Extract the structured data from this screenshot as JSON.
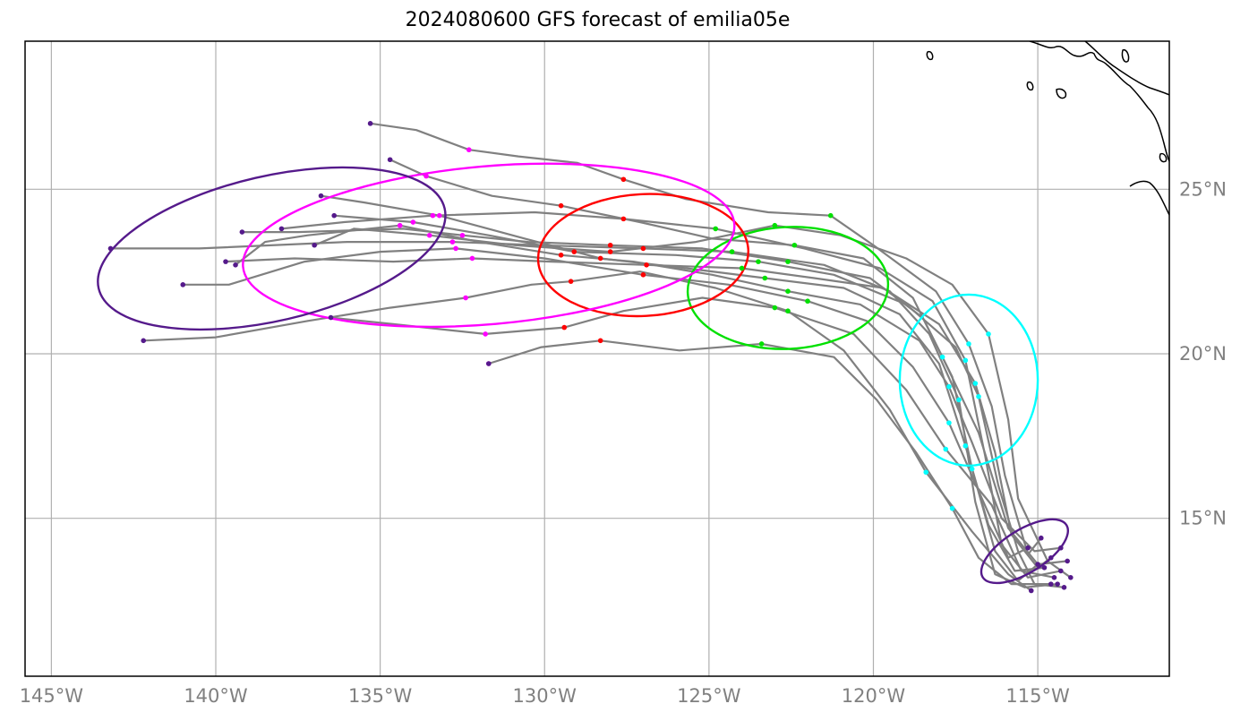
{
  "title": "2024080600 GFS forecast of emilia05e",
  "colors": {
    "track": "#808080",
    "grid": "#b0b0b0",
    "frame": "#000000",
    "coast": "#000000",
    "tick_label": "#808080",
    "stage_colors": [
      "#551a8b",
      "#00ffff",
      "#00e000",
      "#ff0000",
      "#ff00ff",
      "#551a8b"
    ]
  },
  "chart_data": {
    "type": "map",
    "projection": "PlateCarree",
    "lon_range": [
      -145.8,
      -111.0
    ],
    "lat_range": [
      10.2,
      29.5
    ],
    "grid": true,
    "lon_ticks": [
      -145,
      -140,
      -135,
      -130,
      -125,
      -120,
      -115
    ],
    "lon_tick_labels": [
      "145°W",
      "140°W",
      "135°W",
      "130°W",
      "125°W",
      "120°W",
      "115°W"
    ],
    "lat_ticks": [
      15,
      20,
      25
    ],
    "lat_tick_labels": [
      "15°N",
      "20°N",
      "25°N"
    ],
    "probability_ellipses": [
      {
        "color": "#551a8b",
        "center": [
          -115.4,
          14.0
        ],
        "semi_axes_deg": [
          1.5,
          0.65
        ],
        "rotation_deg": -32
      },
      {
        "color": "#00ffff",
        "center": [
          -117.1,
          19.2
        ],
        "semi_axes_deg": [
          2.1,
          2.6
        ],
        "rotation_deg": 0
      },
      {
        "color": "#00e000",
        "center": [
          -122.6,
          22.0
        ],
        "semi_axes_deg": [
          3.05,
          1.85
        ],
        "rotation_deg": -3
      },
      {
        "color": "#ff0000",
        "center": [
          -127.0,
          23.0
        ],
        "semi_axes_deg": [
          3.2,
          1.85
        ],
        "rotation_deg": -3
      },
      {
        "color": "#ff00ff",
        "center": [
          -131.7,
          23.3
        ],
        "semi_axes_deg": [
          7.5,
          2.4
        ],
        "rotation_deg": -5
      },
      {
        "color": "#551a8b",
        "center": [
          -138.3,
          23.2
        ],
        "semi_axes_deg": [
          5.4,
          2.2
        ],
        "rotation_deg": -13
      }
    ],
    "tracks": [
      [
        [
          -115.0,
          13.6
        ],
        [
          -115.6,
          13.1
        ],
        [
          -116.3,
          14.0
        ],
        [
          -117.0,
          16.5
        ],
        [
          -117.6,
          19.3
        ],
        [
          -118.5,
          21.1
        ],
        [
          -120.1,
          22.3
        ],
        [
          -122.6,
          22.8
        ],
        [
          -125.2,
          23.2
        ],
        [
          -128.0,
          23.3
        ],
        [
          -130.5,
          23.4
        ],
        [
          -132.5,
          23.6
        ],
        [
          -134.3,
          23.8
        ],
        [
          -137.5,
          23.7
        ],
        [
          -139.2,
          23.7
        ]
      ],
      [
        [
          -114.4,
          13.0
        ],
        [
          -115.4,
          12.9
        ],
        [
          -116.3,
          13.3
        ],
        [
          -116.9,
          15.5
        ],
        [
          -117.4,
          18.6
        ],
        [
          -118.3,
          20.6
        ],
        [
          -119.5,
          21.9
        ],
        [
          -121.5,
          22.7
        ],
        [
          -124.3,
          23.1
        ],
        [
          -127.0,
          23.2
        ],
        [
          -130.1,
          23.3
        ],
        [
          -132.8,
          23.4
        ],
        [
          -136.0,
          23.4
        ],
        [
          -140.5,
          23.2
        ],
        [
          -143.2,
          23.2
        ]
      ],
      [
        [
          -114.3,
          13.4
        ],
        [
          -115.3,
          13.2
        ],
        [
          -116.1,
          14.2
        ],
        [
          -116.6,
          16.9
        ],
        [
          -117.2,
          19.8
        ],
        [
          -118.2,
          21.6
        ],
        [
          -119.8,
          22.6
        ],
        [
          -122.1,
          23.2
        ],
        [
          -124.8,
          23.8
        ],
        [
          -127.6,
          24.1
        ],
        [
          -130.3,
          24.3
        ],
        [
          -133.4,
          24.2
        ],
        [
          -136.1,
          24.0
        ],
        [
          -138.0,
          23.8
        ]
      ],
      [
        [
          -114.6,
          13.8
        ],
        [
          -115.0,
          13.5
        ],
        [
          -115.8,
          14.5
        ],
        [
          -116.3,
          17.0
        ],
        [
          -116.9,
          19.1
        ],
        [
          -118.0,
          20.9
        ],
        [
          -119.7,
          22.0
        ],
        [
          -121.8,
          22.3
        ],
        [
          -124.0,
          22.6
        ],
        [
          -126.9,
          22.7
        ],
        [
          -129.8,
          22.8
        ],
        [
          -132.2,
          22.9
        ],
        [
          -134.6,
          22.8
        ],
        [
          -137.6,
          22.9
        ],
        [
          -139.7,
          22.8
        ]
      ],
      [
        [
          -114.2,
          12.9
        ],
        [
          -115.1,
          13.0
        ],
        [
          -115.6,
          14.0
        ],
        [
          -116.2,
          16.0
        ],
        [
          -116.8,
          18.7
        ],
        [
          -117.5,
          20.2
        ],
        [
          -119.0,
          21.5
        ],
        [
          -121.2,
          22.4
        ],
        [
          -123.5,
          22.8
        ],
        [
          -126.0,
          23.0
        ],
        [
          -129.1,
          23.1
        ],
        [
          -131.7,
          23.6
        ],
        [
          -134.0,
          24.0
        ],
        [
          -136.4,
          24.2
        ]
      ],
      [
        [
          -114.8,
          13.5
        ],
        [
          -115.7,
          13.4
        ],
        [
          -116.5,
          14.8
        ],
        [
          -117.2,
          17.2
        ],
        [
          -118.0,
          19.7
        ],
        [
          -119.2,
          21.2
        ],
        [
          -120.9,
          22.0
        ],
        [
          -123.3,
          22.3
        ],
        [
          -125.7,
          22.6
        ],
        [
          -128.3,
          22.9
        ],
        [
          -130.6,
          23.5
        ],
        [
          -133.2,
          24.2
        ],
        [
          -135.5,
          24.6
        ],
        [
          -136.8,
          24.8
        ]
      ],
      [
        [
          -115.3,
          14.1
        ],
        [
          -115.9,
          13.8
        ],
        [
          -116.7,
          15.6
        ],
        [
          -117.7,
          17.9
        ],
        [
          -118.8,
          19.6
        ],
        [
          -120.2,
          21.0
        ],
        [
          -122.0,
          21.6
        ],
        [
          -124.4,
          22.1
        ],
        [
          -127.0,
          22.4
        ],
        [
          -130.0,
          22.9
        ],
        [
          -132.7,
          23.2
        ],
        [
          -135.0,
          23.1
        ],
        [
          -137.3,
          22.8
        ],
        [
          -139.6,
          22.1
        ],
        [
          -141.0,
          22.1
        ]
      ],
      [
        [
          -114.1,
          13.7
        ],
        [
          -115.0,
          13.6
        ],
        [
          -115.9,
          14.7
        ],
        [
          -116.8,
          17.6
        ],
        [
          -117.9,
          19.9
        ],
        [
          -118.8,
          21.7
        ],
        [
          -120.3,
          22.9
        ],
        [
          -122.4,
          23.3
        ],
        [
          -124.9,
          23.5
        ],
        [
          -127.1,
          24.0
        ],
        [
          -129.5,
          24.5
        ],
        [
          -131.6,
          24.8
        ],
        [
          -133.6,
          25.4
        ],
        [
          -134.7,
          25.9
        ]
      ],
      [
        [
          -115.2,
          12.8
        ],
        [
          -115.9,
          13.3
        ],
        [
          -117.0,
          14.6
        ],
        [
          -118.4,
          16.4
        ],
        [
          -119.5,
          18.3
        ],
        [
          -120.9,
          20.1
        ],
        [
          -122.6,
          21.3
        ],
        [
          -124.8,
          22.0
        ],
        [
          -127.1,
          22.5
        ],
        [
          -129.2,
          22.2
        ],
        [
          -130.4,
          22.1
        ],
        [
          -132.4,
          21.7
        ],
        [
          -134.7,
          21.4
        ],
        [
          -137.2,
          21.0
        ],
        [
          -140.0,
          20.5
        ],
        [
          -142.2,
          20.4
        ]
      ],
      [
        [
          -114.5,
          13.2
        ],
        [
          -115.5,
          13.4
        ],
        [
          -116.4,
          15.4
        ],
        [
          -117.8,
          17.1
        ],
        [
          -119.0,
          18.9
        ],
        [
          -120.6,
          20.6
        ],
        [
          -123.0,
          21.4
        ],
        [
          -125.2,
          21.7
        ],
        [
          -127.6,
          21.3
        ],
        [
          -129.4,
          20.8
        ],
        [
          -131.8,
          20.6
        ],
        [
          -134.6,
          20.9
        ],
        [
          -136.5,
          21.1
        ]
      ],
      [
        [
          -114.9,
          14.4
        ],
        [
          -115.3,
          13.9
        ],
        [
          -116.0,
          16.3
        ],
        [
          -116.4,
          18.4
        ],
        [
          -117.1,
          20.3
        ],
        [
          -118.1,
          21.9
        ],
        [
          -120.0,
          23.3
        ],
        [
          -121.3,
          24.2
        ],
        [
          -123.2,
          24.3
        ],
        [
          -125.7,
          24.7
        ],
        [
          -127.6,
          25.3
        ],
        [
          -129.0,
          25.8
        ],
        [
          -130.8,
          26.0
        ],
        [
          -132.3,
          26.2
        ],
        [
          -133.9,
          26.8
        ],
        [
          -135.3,
          27.0
        ]
      ],
      [
        [
          -114.6,
          13.0
        ],
        [
          -115.8,
          13.0
        ],
        [
          -116.8,
          13.8
        ],
        [
          -117.6,
          15.3
        ],
        [
          -118.7,
          17.0
        ],
        [
          -119.9,
          18.6
        ],
        [
          -121.2,
          19.9
        ],
        [
          -123.4,
          20.3
        ],
        [
          -125.9,
          20.1
        ],
        [
          -128.3,
          20.4
        ],
        [
          -130.1,
          20.2
        ],
        [
          -131.7,
          19.7
        ]
      ],
      [
        [
          -114.3,
          14.1
        ],
        [
          -115.1,
          14.0
        ],
        [
          -116.1,
          15.0
        ],
        [
          -117.0,
          17.3
        ],
        [
          -117.7,
          19.0
        ],
        [
          -118.6,
          20.4
        ],
        [
          -120.4,
          21.5
        ],
        [
          -122.6,
          21.9
        ],
        [
          -124.9,
          22.4
        ],
        [
          -127.3,
          22.8
        ],
        [
          -129.5,
          23.0
        ],
        [
          -132.0,
          23.4
        ],
        [
          -134.4,
          23.9
        ],
        [
          -137.2,
          23.6
        ],
        [
          -138.5,
          23.4
        ],
        [
          -139.4,
          22.7
        ]
      ],
      [
        [
          -114.0,
          13.2
        ],
        [
          -114.7,
          13.7
        ],
        [
          -115.6,
          15.6
        ],
        [
          -115.9,
          18.0
        ],
        [
          -116.5,
          20.6
        ],
        [
          -117.6,
          22.1
        ],
        [
          -119.0,
          22.9
        ],
        [
          -121.0,
          23.6
        ],
        [
          -123.0,
          23.9
        ],
        [
          -125.4,
          23.4
        ],
        [
          -128.0,
          23.1
        ],
        [
          -130.9,
          23.3
        ],
        [
          -133.5,
          23.6
        ],
        [
          -135.8,
          23.8
        ],
        [
          -137.0,
          23.3
        ]
      ]
    ]
  }
}
